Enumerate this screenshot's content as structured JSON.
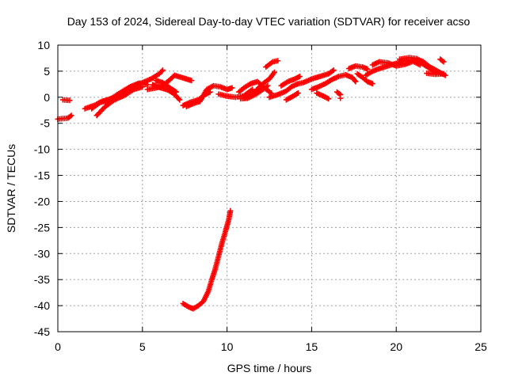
{
  "chart_data": {
    "type": "scatter",
    "title": "Day 153 of 2024, Sidereal Day-to-day VTEC variation (SDTVAR) for receiver acso",
    "xlabel": "GPS time / hours",
    "ylabel": "SDTVAR / TECUs",
    "xlim": [
      0,
      25
    ],
    "ylim": [
      -45,
      10
    ],
    "xticks": [
      0,
      5,
      10,
      15,
      20,
      25
    ],
    "yticks": [
      10,
      5,
      0,
      -5,
      -10,
      -15,
      -20,
      -25,
      -30,
      -35,
      -40,
      -45
    ],
    "grid": true,
    "marker": "+",
    "series": [
      {
        "name": "SDTVAR",
        "color": "#ff0000",
        "tracks": [
          [
            [
              0.0,
              -4.2
            ],
            [
              0.6,
              -4.0
            ],
            [
              0.8,
              -3.5
            ]
          ],
          [
            [
              0.3,
              -0.5
            ],
            [
              0.7,
              -0.6
            ]
          ],
          [
            [
              2.0,
              -2.2
            ],
            [
              2.5,
              -1.0
            ],
            [
              3.0,
              -0.6
            ],
            [
              3.5,
              0.5
            ],
            [
              4.0,
              1.5
            ],
            [
              4.5,
              2.2
            ],
            [
              5.0,
              2.8
            ],
            [
              5.5,
              3.5
            ],
            [
              6.0,
              4.5
            ],
            [
              6.2,
              5.2
            ]
          ],
          [
            [
              1.6,
              -2.2
            ],
            [
              2.2,
              -1.5
            ],
            [
              2.6,
              -0.8
            ],
            [
              3.2,
              -0.2
            ],
            [
              3.8,
              0.7
            ],
            [
              4.2,
              1.9
            ],
            [
              4.8,
              2.7
            ],
            [
              5.3,
              2.4
            ]
          ],
          [
            [
              2.3,
              -3.5
            ],
            [
              2.8,
              -1.8
            ],
            [
              3.3,
              -0.6
            ],
            [
              3.9,
              0.3
            ],
            [
              4.5,
              1.5
            ],
            [
              5.0,
              2.0
            ]
          ],
          [
            [
              5.3,
              1.5
            ],
            [
              5.8,
              1.8
            ],
            [
              6.2,
              2.2
            ],
            [
              6.6,
              3.3
            ],
            [
              6.9,
              4.2
            ],
            [
              7.3,
              3.8
            ],
            [
              7.6,
              3.5
            ],
            [
              7.9,
              3.2
            ]
          ],
          [
            [
              5.6,
              2.4
            ],
            [
              5.9,
              2.0
            ],
            [
              6.1,
              1.8
            ],
            [
              6.5,
              1.4
            ],
            [
              6.8,
              0.8
            ],
            [
              7.0,
              0.2
            ],
            [
              7.2,
              -0.5
            ]
          ],
          [
            [
              5.8,
              3.2
            ],
            [
              6.2,
              2.8
            ],
            [
              6.5,
              2.1
            ],
            [
              6.8,
              1.4
            ],
            [
              7.0,
              1.0
            ]
          ],
          [
            [
              7.4,
              -1.6
            ],
            [
              7.8,
              -1.0
            ],
            [
              8.3,
              -0.5
            ],
            [
              8.7,
              0.5
            ],
            [
              9.0,
              1.0
            ]
          ],
          [
            [
              7.6,
              -1.8
            ],
            [
              8.0,
              -1.2
            ],
            [
              8.4,
              -0.8
            ],
            [
              8.8,
              1.5
            ],
            [
              9.2,
              2.2
            ],
            [
              9.6,
              2.0
            ],
            [
              10.0,
              1.5
            ],
            [
              10.3,
              1.8
            ]
          ],
          [
            [
              9.5,
              0.6
            ],
            [
              10.0,
              0.2
            ],
            [
              10.5,
              0.0
            ],
            [
              11.0,
              0.3
            ],
            [
              11.5,
              1.5
            ]
          ],
          [
            [
              11.0,
              -0.2
            ],
            [
              11.5,
              0.5
            ],
            [
              11.8,
              1.6
            ],
            [
              12.2,
              2.8
            ],
            [
              12.5,
              3.5
            ],
            [
              12.8,
              4.8
            ]
          ],
          [
            [
              10.7,
              1.0
            ],
            [
              11.0,
              1.8
            ],
            [
              11.4,
              2.6
            ],
            [
              11.8,
              3.0
            ],
            [
              12.2,
              1.8
            ],
            [
              12.6,
              0.8
            ]
          ],
          [
            [
              10.8,
              -0.3
            ],
            [
              11.2,
              -0.2
            ],
            [
              11.6,
              0.4
            ],
            [
              12.0,
              1.2
            ],
            [
              12.4,
              2.2
            ]
          ],
          [
            [
              12.3,
              5.8
            ],
            [
              12.7,
              6.8
            ],
            [
              13.0,
              7.0
            ]
          ],
          [
            [
              12.5,
              0.0
            ],
            [
              13.0,
              0.5
            ],
            [
              13.5,
              1.2
            ],
            [
              13.8,
              2.0
            ],
            [
              14.2,
              2.6
            ],
            [
              14.5,
              2.8
            ],
            [
              15.0,
              3.5
            ],
            [
              15.5,
              4.0
            ],
            [
              16.0,
              4.5
            ],
            [
              16.3,
              5.2
            ]
          ],
          [
            [
              13.2,
              2.2
            ],
            [
              13.6,
              3.0
            ],
            [
              14.0,
              3.5
            ],
            [
              14.3,
              4.0
            ]
          ],
          [
            [
              13.5,
              -0.5
            ],
            [
              13.9,
              0.2
            ],
            [
              14.2,
              0.8
            ]
          ],
          [
            [
              15.0,
              1.5
            ],
            [
              15.4,
              2.0
            ],
            [
              15.8,
              2.6
            ],
            [
              16.2,
              3.4
            ],
            [
              16.6,
              4.0
            ],
            [
              17.0,
              4.3
            ],
            [
              17.4,
              3.8
            ],
            [
              17.6,
              3.0
            ]
          ],
          [
            [
              15.3,
              0.8
            ],
            [
              15.7,
              0.2
            ],
            [
              16.0,
              -0.3
            ]
          ],
          [
            [
              16.5,
              1.0
            ],
            [
              16.7,
              0.5
            ]
          ],
          [
            [
              17.7,
              4.5
            ],
            [
              18.0,
              3.8
            ],
            [
              18.3,
              3.0
            ],
            [
              18.6,
              2.6
            ]
          ],
          [
            [
              16.7,
              -0.2
            ]
          ],
          [
            [
              17.2,
              5.5
            ],
            [
              17.6,
              6.0
            ],
            [
              18.0,
              5.8
            ],
            [
              18.3,
              5.4
            ]
          ],
          [
            [
              18.2,
              4.2
            ],
            [
              18.6,
              5.0
            ],
            [
              19.0,
              5.5
            ],
            [
              19.5,
              6.0
            ],
            [
              20.0,
              6.5
            ],
            [
              20.5,
              7.0
            ],
            [
              21.0,
              7.2
            ],
            [
              21.5,
              6.5
            ],
            [
              22.0,
              5.5
            ],
            [
              22.4,
              4.5
            ]
          ],
          [
            [
              18.6,
              6.2
            ],
            [
              19.0,
              6.8
            ],
            [
              19.5,
              6.6
            ],
            [
              20.0,
              6.0
            ],
            [
              20.5,
              6.3
            ],
            [
              21.0,
              6.9
            ],
            [
              21.4,
              6.2
            ]
          ],
          [
            [
              20.2,
              7.3
            ],
            [
              20.8,
              7.6
            ],
            [
              21.2,
              7.4
            ],
            [
              21.6,
              6.8
            ],
            [
              22.0,
              5.8
            ],
            [
              22.5,
              4.9
            ],
            [
              22.9,
              4.2
            ]
          ],
          [
            [
              21.8,
              4.6
            ],
            [
              22.3,
              4.4
            ],
            [
              22.8,
              4.5
            ]
          ],
          [
            [
              22.6,
              7.3
            ],
            [
              22.8,
              6.8
            ]
          ],
          [
            [
              7.4,
              -39.6
            ],
            [
              7.7,
              -40.2
            ],
            [
              8.0,
              -40.6
            ],
            [
              8.3,
              -40.0
            ],
            [
              8.6,
              -39.2
            ],
            [
              8.9,
              -37.2
            ],
            [
              9.1,
              -35.0
            ],
            [
              9.3,
              -33.0
            ],
            [
              9.5,
              -30.5
            ],
            [
              9.7,
              -28.0
            ],
            [
              9.9,
              -25.8
            ],
            [
              10.1,
              -23.5
            ],
            [
              10.2,
              -21.8
            ]
          ]
        ]
      }
    ]
  }
}
